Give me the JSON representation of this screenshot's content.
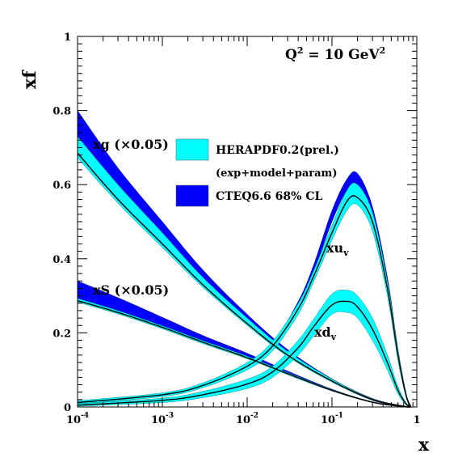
{
  "chart_data": {
    "type": "line",
    "title": "Q² = 10 GeV²",
    "title_parts": {
      "q": "Q",
      "q_exp": "2",
      "rest": " = 10 GeV",
      "unit_exp": "2"
    },
    "xlabel": "x",
    "ylabel": "xf",
    "xscale": "log",
    "xlim": [
      0.0001,
      1
    ],
    "ylim": [
      0,
      1
    ],
    "x_ticks": [
      {
        "base": "10",
        "exp": "-4",
        "value": 0.0001
      },
      {
        "base": "10",
        "exp": "-3",
        "value": 0.001
      },
      {
        "base": "10",
        "exp": "-2",
        "value": 0.01
      },
      {
        "base": "10",
        "exp": "-1",
        "value": 0.1
      },
      {
        "base": "1",
        "exp": "",
        "value": 1
      }
    ],
    "y_ticks": [
      "0",
      "0.2",
      "0.4",
      "0.6",
      "0.8",
      "1"
    ],
    "legend": {
      "placement": "upper-center",
      "entries": [
        {
          "label": "HERAPDF0.2(prel.)",
          "sub": "(exp+model+param)",
          "color": "#00ffff"
        },
        {
          "label": "CTEQ6.6 68% CL",
          "sub": "",
          "color": "#0000ff"
        }
      ]
    },
    "annotations": {
      "xg": "xg (×0.05)",
      "xs": "xS (×0.05)",
      "xuv_base": "xu",
      "xuv_sub": "v",
      "xdv_base": "xd",
      "xdv_sub": "v"
    },
    "colors": {
      "hera": "#00ffff",
      "cteq": "#0000ff",
      "central": "#000000"
    },
    "series": [
      {
        "key": "xg",
        "x": [
          0.0001,
          0.0003,
          0.001,
          0.003,
          0.01,
          0.03,
          0.1,
          0.3,
          0.7,
          0.85
        ],
        "central": [
          0.685,
          0.56,
          0.44,
          0.33,
          0.225,
          0.14,
          0.07,
          0.02,
          0.002,
          0
        ],
        "hera_band": [
          [
            0.672,
            0.73
          ],
          [
            0.55,
            0.6
          ],
          [
            0.43,
            0.47
          ],
          [
            0.323,
            0.35
          ],
          [
            0.22,
            0.24
          ],
          [
            0.136,
            0.15
          ],
          [
            0.067,
            0.075
          ],
          [
            0.018,
            0.022
          ],
          [
            0.001,
            0.003
          ],
          [
            0,
            0.001
          ]
        ],
        "cteq_band": [
          [
            0.7,
            0.8
          ],
          [
            0.575,
            0.645
          ],
          [
            0.455,
            0.5
          ],
          [
            0.34,
            0.37
          ],
          [
            0.23,
            0.25
          ],
          [
            0.14,
            0.155
          ],
          [
            0.068,
            0.076
          ],
          [
            0.018,
            0.023
          ],
          [
            0.001,
            0.003
          ],
          [
            0,
            0.001
          ]
        ]
      },
      {
        "key": "xs",
        "x": [
          0.0001,
          0.0003,
          0.001,
          0.003,
          0.01,
          0.03,
          0.1,
          0.3,
          0.7,
          0.85
        ],
        "central": [
          0.287,
          0.255,
          0.215,
          0.175,
          0.133,
          0.09,
          0.045,
          0.013,
          0.001,
          0
        ],
        "hera_band": [
          [
            0.283,
            0.293
          ],
          [
            0.251,
            0.26
          ],
          [
            0.211,
            0.219
          ],
          [
            0.171,
            0.179
          ],
          [
            0.13,
            0.137
          ],
          [
            0.087,
            0.093
          ],
          [
            0.043,
            0.047
          ],
          [
            0.012,
            0.014
          ],
          [
            0.0005,
            0.0015
          ],
          [
            0,
            0.0005
          ]
        ],
        "cteq_band": [
          [
            0.29,
            0.34
          ],
          [
            0.258,
            0.295
          ],
          [
            0.218,
            0.242
          ],
          [
            0.177,
            0.193
          ],
          [
            0.135,
            0.145
          ],
          [
            0.091,
            0.097
          ],
          [
            0.045,
            0.048
          ],
          [
            0.012,
            0.014
          ],
          [
            0.0005,
            0.0015
          ],
          [
            0,
            0.0005
          ]
        ]
      },
      {
        "key": "xuv",
        "x": [
          0.0001,
          0.001,
          0.003,
          0.01,
          0.02,
          0.04,
          0.06,
          0.1,
          0.15,
          0.2,
          0.3,
          0.45,
          0.6,
          0.75,
          0.85
        ],
        "central": [
          0.012,
          0.033,
          0.058,
          0.11,
          0.165,
          0.265,
          0.35,
          0.47,
          0.555,
          0.565,
          0.5,
          0.32,
          0.14,
          0.03,
          0.002
        ],
        "hera_band": [
          [
            0.008,
            0.017
          ],
          [
            0.028,
            0.038
          ],
          [
            0.052,
            0.065
          ],
          [
            0.1,
            0.12
          ],
          [
            0.152,
            0.178
          ],
          [
            0.25,
            0.28
          ],
          [
            0.335,
            0.365
          ],
          [
            0.45,
            0.49
          ],
          [
            0.53,
            0.585
          ],
          [
            0.545,
            0.6
          ],
          [
            0.475,
            0.525
          ],
          [
            0.3,
            0.34
          ],
          [
            0.125,
            0.155
          ],
          [
            0.025,
            0.036
          ],
          [
            0,
            0.004
          ]
        ],
        "cteq_band": [
          [
            0.01,
            0.013
          ],
          [
            0.031,
            0.036
          ],
          [
            0.057,
            0.062
          ],
          [
            0.108,
            0.116
          ],
          [
            0.163,
            0.172
          ],
          [
            0.27,
            0.285
          ],
          [
            0.36,
            0.38
          ],
          [
            0.5,
            0.53
          ],
          [
            0.585,
            0.615
          ],
          [
            0.6,
            0.63
          ],
          [
            0.515,
            0.54
          ],
          [
            0.33,
            0.35
          ],
          [
            0.14,
            0.155
          ],
          [
            0.03,
            0.036
          ],
          [
            0.001,
            0.003
          ]
        ]
      },
      {
        "key": "xdv",
        "x": [
          0.0001,
          0.001,
          0.003,
          0.01,
          0.02,
          0.04,
          0.06,
          0.1,
          0.15,
          0.2,
          0.3,
          0.45,
          0.6,
          0.75,
          0.85
        ],
        "central": [
          0.005,
          0.018,
          0.033,
          0.062,
          0.095,
          0.16,
          0.215,
          0.275,
          0.285,
          0.27,
          0.21,
          0.12,
          0.045,
          0.008,
          0.001
        ],
        "hera_band": [
          [
            0.002,
            0.009
          ],
          [
            0.012,
            0.024
          ],
          [
            0.025,
            0.042
          ],
          [
            0.05,
            0.075
          ],
          [
            0.08,
            0.11
          ],
          [
            0.14,
            0.18
          ],
          [
            0.19,
            0.235
          ],
          [
            0.25,
            0.305
          ],
          [
            0.255,
            0.315
          ],
          [
            0.24,
            0.3
          ],
          [
            0.18,
            0.24
          ],
          [
            0.1,
            0.14
          ],
          [
            0.035,
            0.055
          ],
          [
            0.005,
            0.011
          ],
          [
            0,
            0.002
          ]
        ],
        "cteq_band": [
          [
            0.004,
            0.006
          ],
          [
            0.016,
            0.02
          ],
          [
            0.03,
            0.036
          ],
          [
            0.058,
            0.066
          ],
          [
            0.09,
            0.1
          ],
          [
            0.15,
            0.165
          ],
          [
            0.205,
            0.225
          ],
          [
            0.265,
            0.29
          ],
          [
            0.272,
            0.3
          ],
          [
            0.258,
            0.285
          ],
          [
            0.2,
            0.222
          ],
          [
            0.113,
            0.128
          ],
          [
            0.042,
            0.05
          ],
          [
            0.007,
            0.01
          ],
          [
            0.0005,
            0.0015
          ]
        ]
      }
    ]
  }
}
